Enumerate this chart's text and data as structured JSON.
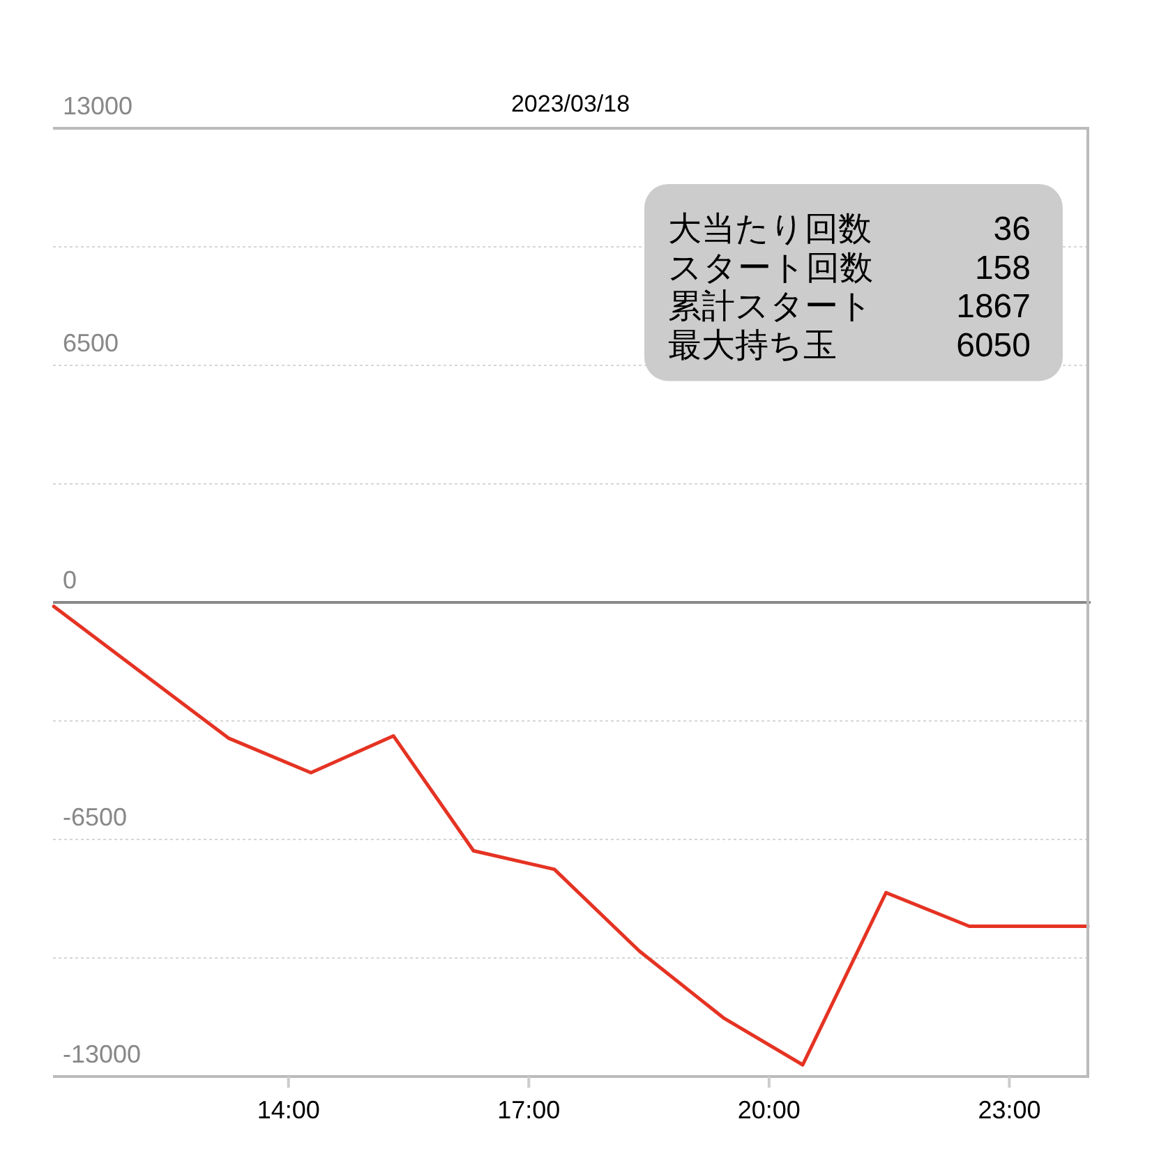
{
  "chart_data": {
    "type": "line",
    "title": "2023/03/18",
    "x": [
      11.07,
      13.25,
      14.28,
      15.31,
      16.31,
      17.32,
      18.38,
      19.43,
      20.42,
      21.46,
      22.5,
      23.98
    ],
    "series": [
      {
        "color": "#e53323",
        "values": [
          -110,
          -3720,
          -4670,
          -3660,
          -6810,
          -7320,
          -9560,
          -11390,
          -12680,
          -7960,
          -8880,
          -8880
        ]
      }
    ],
    "xlim": [
      11.06,
      23.98
    ],
    "xticks": [
      {
        "value": 14,
        "label": "14:00"
      },
      {
        "value": 17,
        "label": "17:00"
      },
      {
        "value": 20,
        "label": "20:00"
      },
      {
        "value": 23,
        "label": "23:00"
      }
    ],
    "ylim": [
      -13000,
      13000
    ],
    "yticks": [
      13000,
      {
        "value": 9750,
        "label": null
      },
      6500,
      {
        "value": 3250,
        "label": null
      },
      0,
      {
        "value": -3250,
        "label": null
      },
      -6500,
      {
        "value": -9750,
        "label": null
      },
      -13000
    ],
    "grid": "y",
    "line_style": "solid",
    "annotations": [
      "大当たり回数",
      "36",
      "スタート回数",
      "158",
      "累計スタート",
      "1867",
      "最大持ち玉",
      "6050"
    ]
  }
}
